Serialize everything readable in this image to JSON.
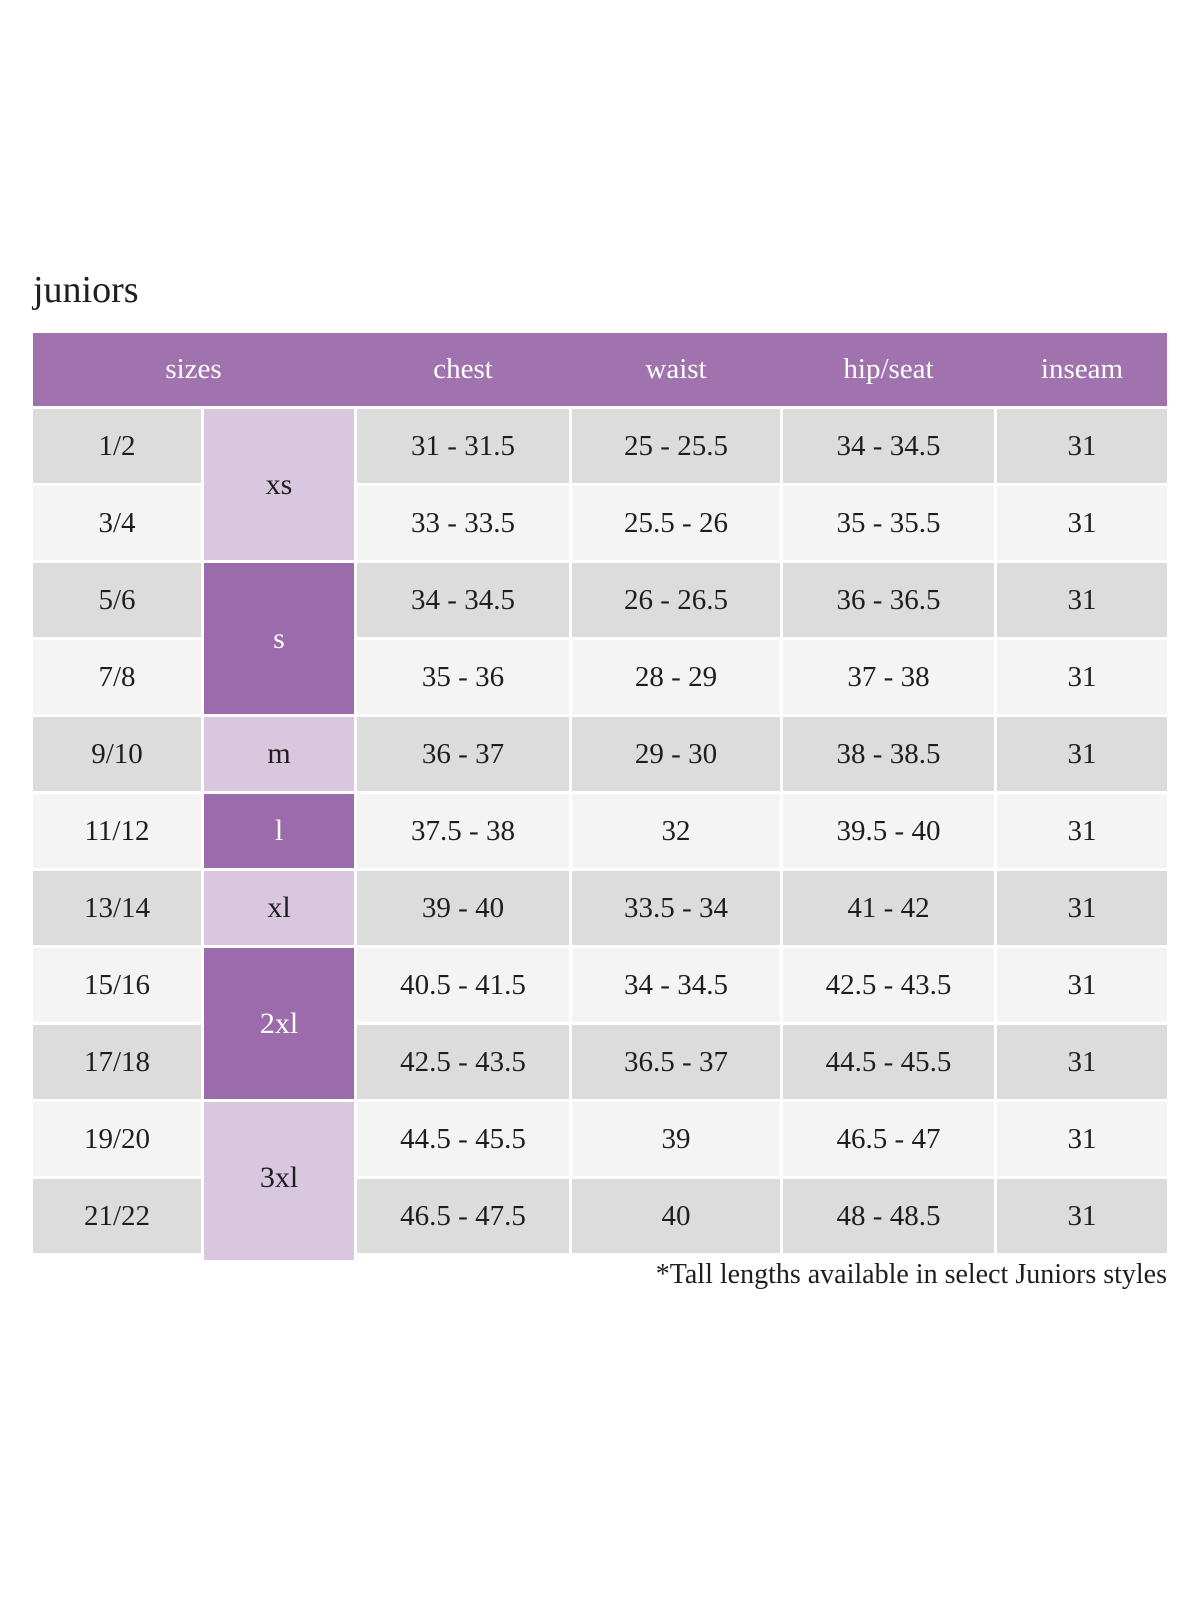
{
  "title": "juniors",
  "footnote": "*Tall lengths available in select Juniors styles",
  "colors": {
    "header_purple": "#a173ae",
    "group_dark_purple": "#9c6bab",
    "group_light_purple": "#d9c7df",
    "row_dark_gray": "#dcdcdc",
    "row_light_gray": "#f4f4f4",
    "header_text": "#ffffff",
    "body_text": "#1e1e1e"
  },
  "table": {
    "headers": {
      "sizes": "sizes",
      "chest": "chest",
      "waist": "waist",
      "hip_seat": "hip/seat",
      "inseam": "inseam"
    },
    "groups": [
      {
        "label": "xs",
        "rows": 2,
        "variant": "light",
        "extends_below": false
      },
      {
        "label": "s",
        "rows": 2,
        "variant": "dark",
        "extends_below": false
      },
      {
        "label": "m",
        "rows": 1,
        "variant": "light",
        "extends_below": false
      },
      {
        "label": "l",
        "rows": 1,
        "variant": "dark",
        "extends_below": false
      },
      {
        "label": "xl",
        "rows": 1,
        "variant": "light",
        "extends_below": false
      },
      {
        "label": "2xl",
        "rows": 2,
        "variant": "dark",
        "extends_below": false
      },
      {
        "label": "3xl",
        "rows": 2,
        "variant": "light",
        "extends_below": true
      }
    ],
    "rows": [
      {
        "size": "1/2",
        "chest": "31 - 31.5",
        "waist": "25 - 25.5",
        "hip_seat": "34 - 34.5",
        "inseam": "31"
      },
      {
        "size": "3/4",
        "chest": "33 - 33.5",
        "waist": "25.5 - 26",
        "hip_seat": "35 - 35.5",
        "inseam": "31"
      },
      {
        "size": "5/6",
        "chest": "34 - 34.5",
        "waist": "26 - 26.5",
        "hip_seat": "36 - 36.5",
        "inseam": "31"
      },
      {
        "size": "7/8",
        "chest": "35 - 36",
        "waist": "28 - 29",
        "hip_seat": "37 - 38",
        "inseam": "31"
      },
      {
        "size": "9/10",
        "chest": "36 - 37",
        "waist": "29 - 30",
        "hip_seat": "38 - 38.5",
        "inseam": "31"
      },
      {
        "size": "11/12",
        "chest": "37.5 - 38",
        "waist": "32",
        "hip_seat": "39.5 - 40",
        "inseam": "31"
      },
      {
        "size": "13/14",
        "chest": "39 - 40",
        "waist": "33.5 - 34",
        "hip_seat": "41 - 42",
        "inseam": "31"
      },
      {
        "size": "15/16",
        "chest": "40.5 - 41.5",
        "waist": "34 - 34.5",
        "hip_seat": "42.5 - 43.5",
        "inseam": "31"
      },
      {
        "size": "17/18",
        "chest": "42.5 - 43.5",
        "waist": "36.5 - 37",
        "hip_seat": "44.5 - 45.5",
        "inseam": "31"
      },
      {
        "size": "19/20",
        "chest": "44.5 - 45.5",
        "waist": "39",
        "hip_seat": "46.5 - 47",
        "inseam": "31"
      },
      {
        "size": "21/22",
        "chest": "46.5 - 47.5",
        "waist": "40",
        "hip_seat": "48 - 48.5",
        "inseam": "31"
      }
    ]
  }
}
